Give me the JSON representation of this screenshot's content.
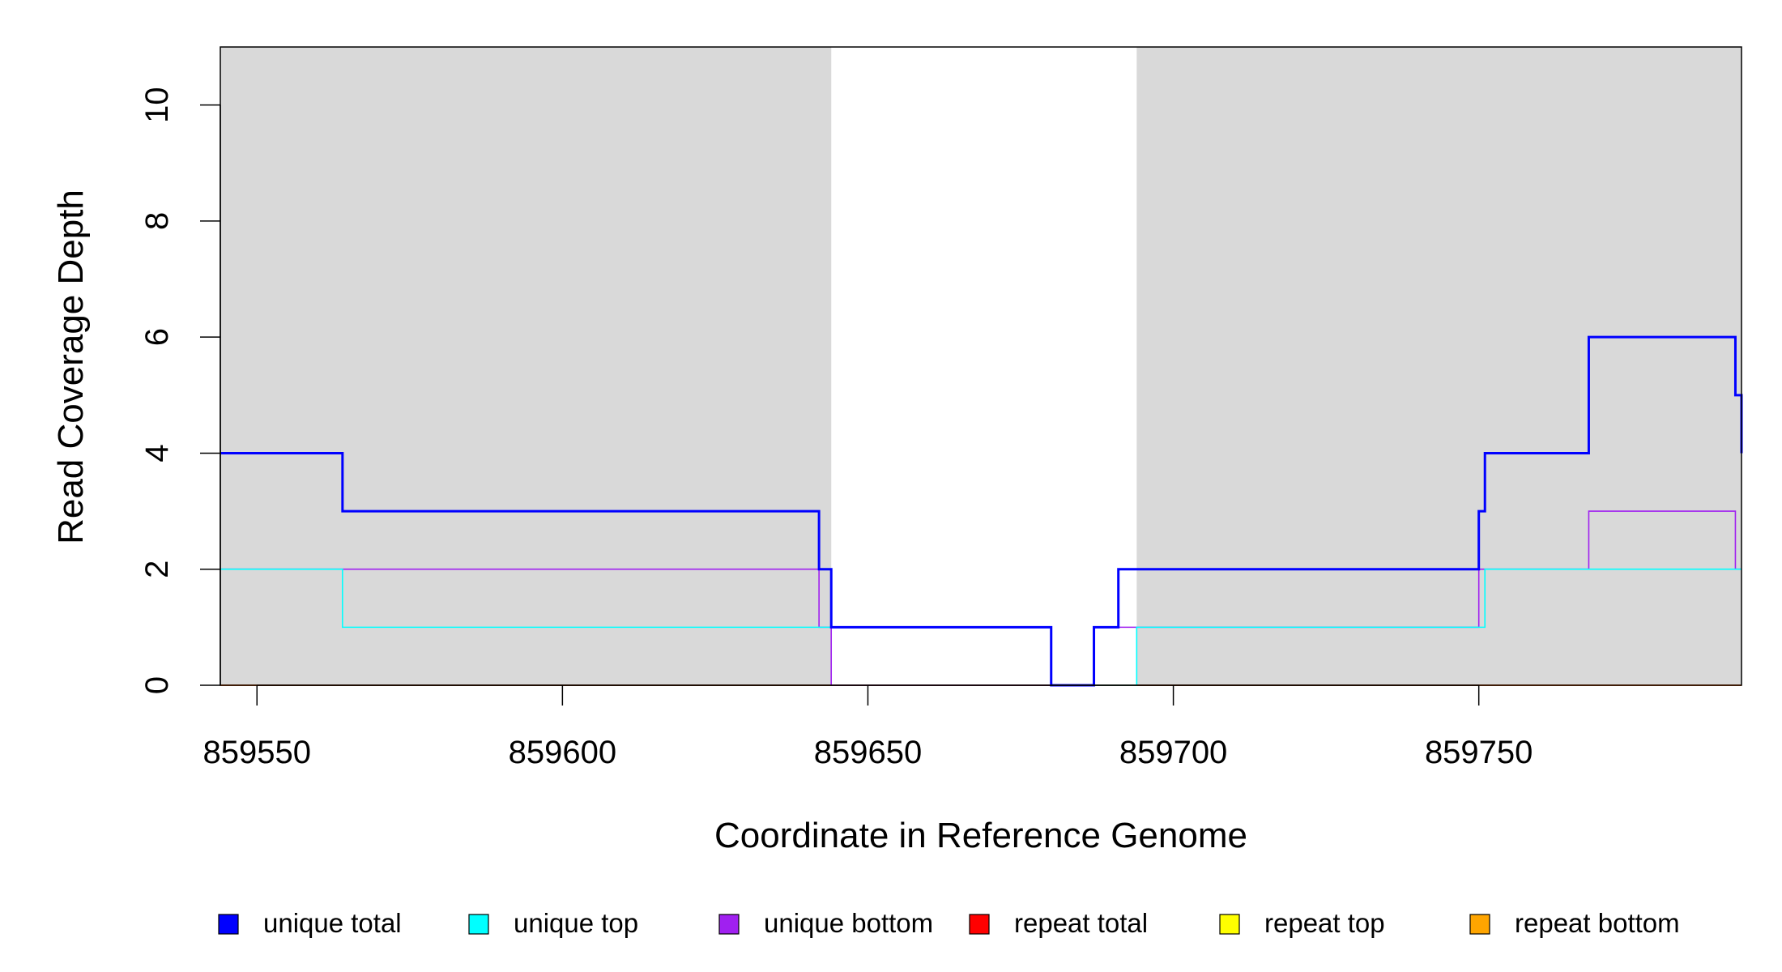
{
  "chart_data": {
    "type": "line",
    "step": true,
    "xlabel": "Coordinate in Reference Genome",
    "ylabel": "Read Coverage Depth",
    "xlim": [
      859544,
      859793
    ],
    "ylim": [
      0,
      11
    ],
    "x_ticks": [
      859550,
      859600,
      859650,
      859700,
      859750
    ],
    "x_tick_labels": [
      "859550",
      "859600",
      "859650",
      "859700",
      "859750"
    ],
    "y_ticks": [
      0,
      2,
      4,
      6,
      8,
      10
    ],
    "y_tick_labels": [
      "0",
      "2",
      "4",
      "6",
      "8",
      "10"
    ],
    "shaded_regions": [
      [
        859544,
        859644
      ],
      [
        859694,
        859793
      ]
    ],
    "shade_color": "#d9d9d9",
    "legend_position": "bottom",
    "series": [
      {
        "name": "unique total",
        "color": "#0000ff",
        "emphasis": true,
        "x": [
          859544,
          859564,
          859642,
          859644,
          859680,
          859687,
          859691,
          859694,
          859750,
          859751,
          859768,
          859792,
          859793
        ],
        "y": [
          4,
          3,
          2,
          1,
          0,
          1,
          2,
          2,
          3,
          4,
          6,
          5,
          4
        ]
      },
      {
        "name": "unique top",
        "color": "#00ffff",
        "emphasis": false,
        "x": [
          859544,
          859564,
          859644,
          859680,
          859694,
          859751,
          859793
        ],
        "y": [
          2,
          1,
          1,
          0,
          1,
          2,
          2
        ]
      },
      {
        "name": "unique bottom",
        "color": "#a020f0",
        "emphasis": false,
        "x": [
          859544,
          859642,
          859644,
          859687,
          859691,
          859750,
          859768,
          859792,
          859793
        ],
        "y": [
          2,
          1,
          0,
          1,
          1,
          2,
          3,
          2,
          2
        ]
      },
      {
        "name": "repeat total",
        "color": "#ff0000",
        "emphasis": false,
        "x": [
          859544,
          859793
        ],
        "y": [
          0,
          0
        ]
      },
      {
        "name": "repeat top",
        "color": "#ffff00",
        "emphasis": false,
        "x": [
          859544,
          859793
        ],
        "y": [
          0,
          0
        ]
      },
      {
        "name": "repeat bottom",
        "color": "#ffa500",
        "emphasis": false,
        "x": [
          859544,
          859793
        ],
        "y": [
          0,
          0
        ]
      }
    ]
  }
}
